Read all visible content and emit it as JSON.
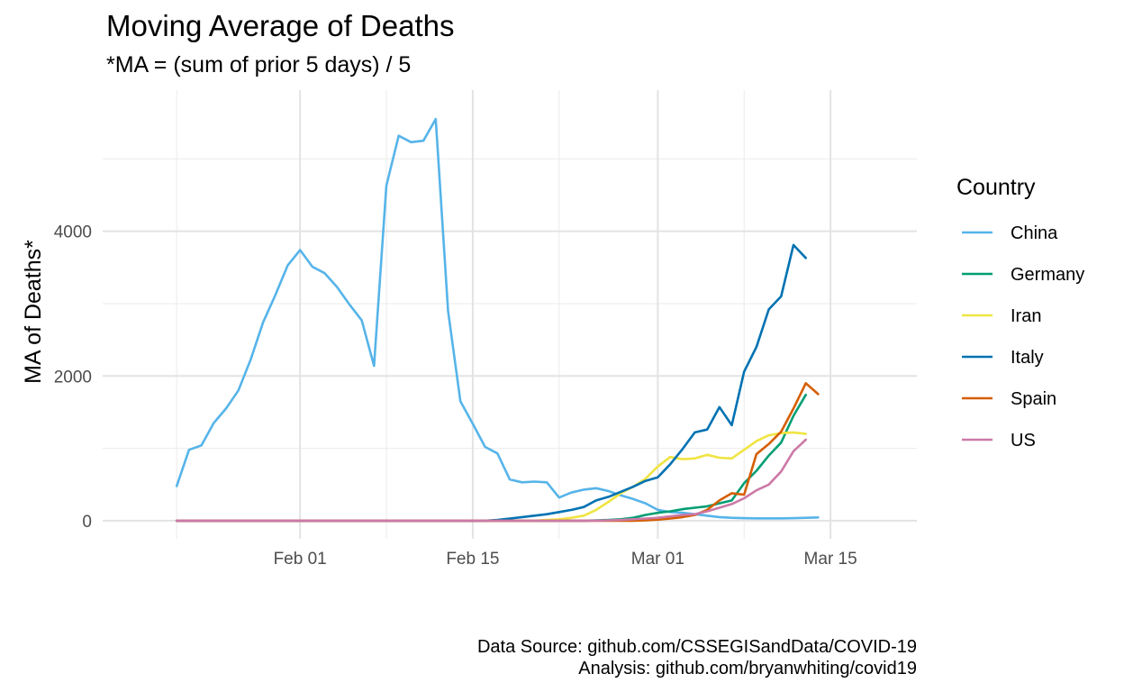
{
  "chart_data": {
    "type": "line",
    "title": "Moving Average of Deaths",
    "subtitle": "*MA = (sum of prior 5 days) / 5",
    "xlabel": "",
    "ylabel": "MA of Deaths*",
    "caption": [
      "Data Source: github.com/CSSEGISandData/COVID-19",
      "Analysis: github.com/bryanwhiting/covid19"
    ],
    "x_start": "2020-01-22",
    "xlim": [
      "2020-01-16",
      "2020-03-22"
    ],
    "ylim": [
      -250,
      5950
    ],
    "x_ticks": [
      {
        "date": "2020-02-01",
        "label": "Feb 01"
      },
      {
        "date": "2020-02-15",
        "label": "Feb 15"
      },
      {
        "date": "2020-03-01",
        "label": "Mar 01"
      },
      {
        "date": "2020-03-15",
        "label": "Mar 15"
      }
    ],
    "x_minor_ticks": [
      "2020-01-22",
      "2020-02-08",
      "2020-02-22",
      "2020-03-08"
    ],
    "y_ticks": [
      0,
      2000,
      4000
    ],
    "y_minor_ticks": [
      1000,
      3000,
      5000
    ],
    "grid": true,
    "legend": {
      "title": "Country",
      "position": "right"
    },
    "series": [
      {
        "name": "China",
        "color": "#56B4E9",
        "values": [
          480,
          980,
          1040,
          1350,
          1550,
          1800,
          2230,
          2740,
          3120,
          3530,
          3740,
          3510,
          3420,
          3230,
          2990,
          2770,
          2140,
          4630,
          5320,
          5230,
          5250,
          5550,
          2900,
          1650,
          1340,
          1020,
          930,
          570,
          530,
          540,
          530,
          320,
          390,
          430,
          450,
          410,
          350,
          300,
          240,
          150,
          120,
          110,
          90,
          70,
          50,
          40,
          35,
          32,
          32,
          32,
          35,
          40,
          45
        ]
      },
      {
        "name": "Germany",
        "color": "#009E73",
        "values": [
          0,
          0,
          0,
          0,
          0,
          0,
          0,
          0,
          0,
          0,
          0,
          0,
          0,
          0,
          0,
          0,
          0,
          0,
          0,
          0,
          0,
          0,
          0,
          0,
          0,
          0,
          0,
          0,
          0,
          0,
          0,
          0,
          0,
          0,
          5,
          10,
          20,
          40,
          80,
          110,
          130,
          160,
          180,
          200,
          240,
          280,
          520,
          690,
          900,
          1080,
          1450,
          1740
        ]
      },
      {
        "name": "Iran",
        "color": "#F0E442",
        "values": [
          0,
          0,
          0,
          0,
          0,
          0,
          0,
          0,
          0,
          0,
          0,
          0,
          0,
          0,
          0,
          0,
          0,
          0,
          0,
          0,
          0,
          0,
          0,
          0,
          0,
          0,
          0,
          0,
          0,
          0,
          10,
          20,
          40,
          70,
          150,
          260,
          380,
          470,
          580,
          750,
          880,
          850,
          860,
          910,
          870,
          860,
          980,
          1100,
          1180,
          1210,
          1220,
          1200
        ]
      },
      {
        "name": "Italy",
        "color": "#0072B2",
        "values": [
          0,
          0,
          0,
          0,
          0,
          0,
          0,
          0,
          0,
          0,
          0,
          0,
          0,
          0,
          0,
          0,
          0,
          0,
          0,
          0,
          0,
          0,
          0,
          0,
          0,
          0,
          10,
          30,
          50,
          70,
          90,
          120,
          150,
          190,
          280,
          330,
          400,
          470,
          550,
          600,
          780,
          990,
          1220,
          1260,
          1570,
          1320,
          2060,
          2400,
          2920,
          3100,
          3810,
          3630
        ]
      },
      {
        "name": "Spain",
        "color": "#D55E00",
        "values": [
          0,
          0,
          0,
          0,
          0,
          0,
          0,
          0,
          0,
          0,
          0,
          0,
          0,
          0,
          0,
          0,
          0,
          0,
          0,
          0,
          0,
          0,
          0,
          0,
          0,
          0,
          0,
          0,
          0,
          0,
          0,
          0,
          0,
          0,
          0,
          0,
          0,
          0,
          5,
          15,
          30,
          50,
          80,
          150,
          280,
          380,
          360,
          920,
          1060,
          1230,
          1550,
          1900,
          1750
        ]
      },
      {
        "name": "US",
        "color": "#CC79A7",
        "values": [
          0,
          0,
          0,
          0,
          0,
          0,
          0,
          0,
          0,
          0,
          0,
          0,
          0,
          0,
          0,
          0,
          0,
          0,
          0,
          0,
          0,
          0,
          0,
          0,
          0,
          0,
          0,
          0,
          0,
          0,
          0,
          0,
          0,
          0,
          2,
          5,
          10,
          20,
          30,
          40,
          60,
          80,
          90,
          130,
          180,
          230,
          310,
          420,
          500,
          680,
          960,
          1120
        ]
      }
    ]
  }
}
